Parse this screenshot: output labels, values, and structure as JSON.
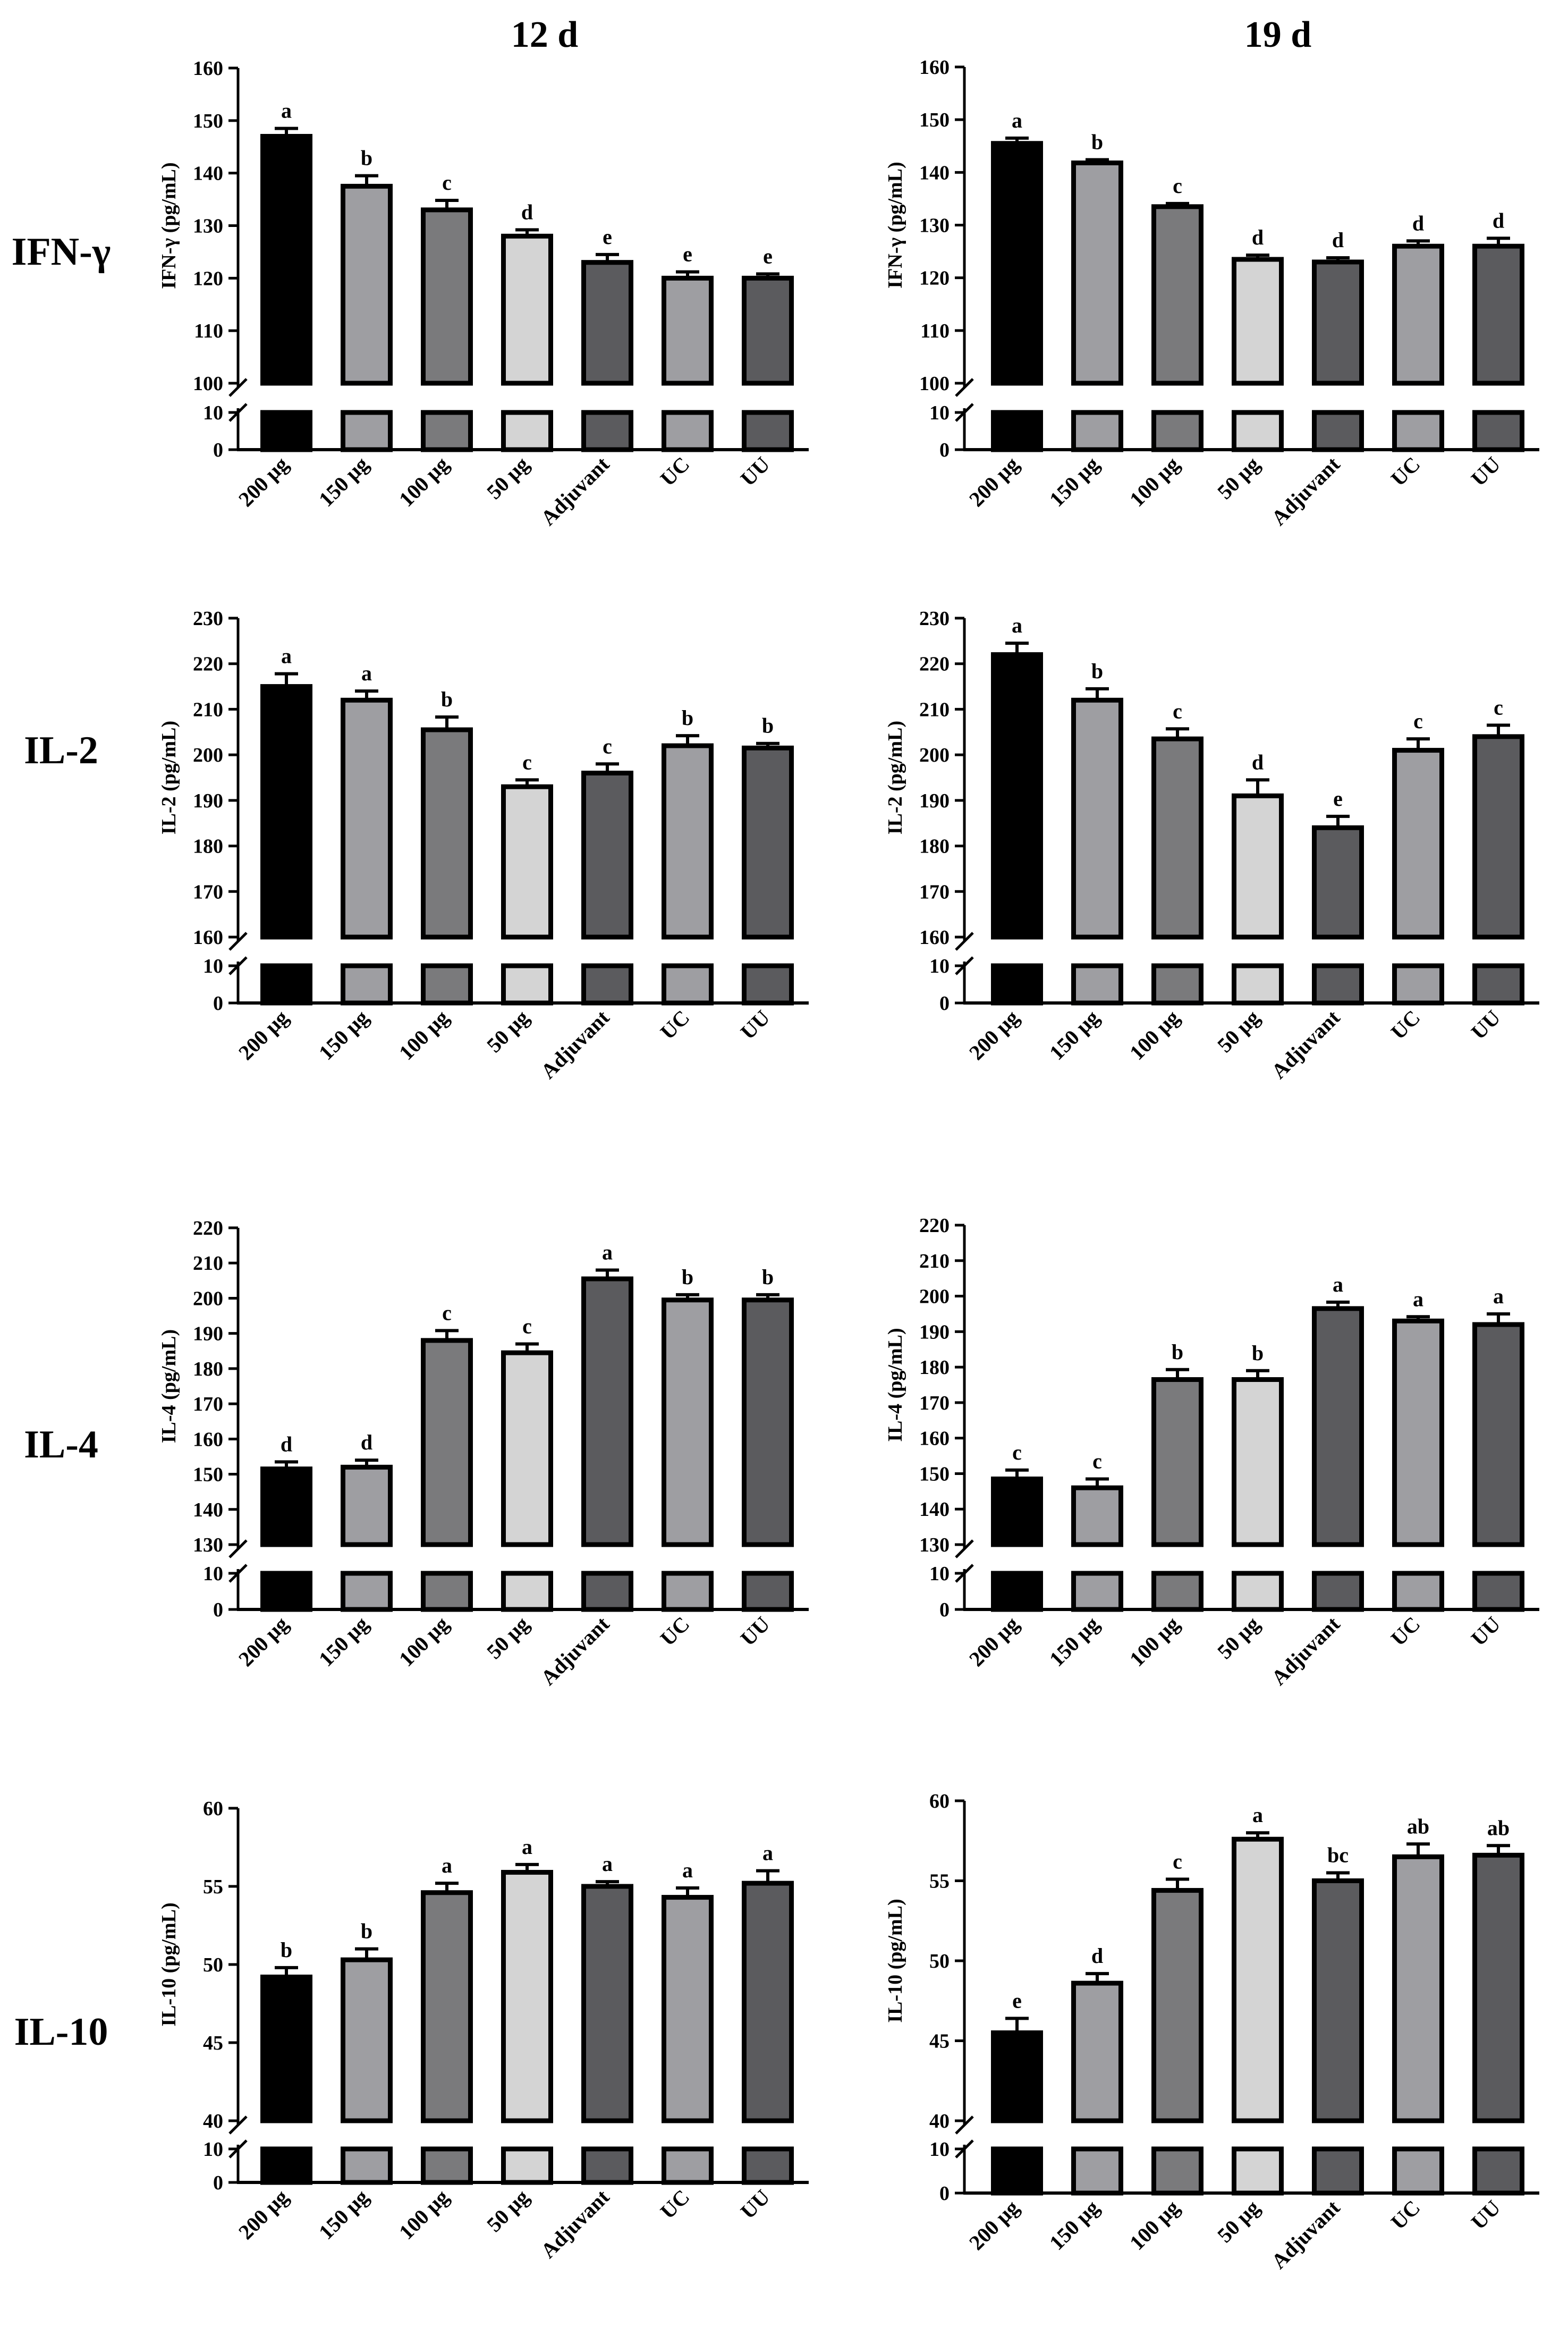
{
  "column_titles": [
    "12 d",
    "19 d"
  ],
  "row_labels": [
    "IFN-γ",
    "IL-2",
    "IL-4",
    "IL-10"
  ],
  "colors": {
    "200 μg": "#000000",
    "150 μg": "#9e9ea2",
    "100 μg": "#7a7a7c",
    "50 μg": "#d4d4d4",
    "Adjuvant": "#5b5b5e",
    "UC": "#9e9ea2",
    "UU": "#5b5b5e"
  },
  "chart_data": [
    {
      "id": "ifn-12d",
      "type": "bar",
      "title": "12 d",
      "row": 0,
      "col": 0,
      "ylabel": "IFN-γ (pg/mL)",
      "categories": [
        "200 μg",
        "150 μg",
        "100 μg",
        "50 μg",
        "Adjuvant",
        "UC",
        "UU"
      ],
      "values": [
        147,
        137.5,
        133,
        128,
        123,
        120,
        120
      ],
      "errors": [
        1.5,
        2,
        1.8,
        1.2,
        1.5,
        1.2,
        0.8
      ],
      "letters": [
        "a",
        "b",
        "c",
        "d",
        "e",
        "e",
        "e"
      ],
      "upper_range": [
        100,
        160
      ],
      "upper_ticks": [
        100,
        110,
        120,
        130,
        140,
        150,
        160
      ],
      "lower_range": [
        0,
        10
      ],
      "lower_ticks": [
        0,
        10
      ],
      "axis_break": true
    },
    {
      "id": "ifn-19d",
      "type": "bar",
      "title": "19 d",
      "row": 0,
      "col": 1,
      "ylabel": "IFN-γ (pg/mL)",
      "categories": [
        "200 μg",
        "150 μg",
        "100 μg",
        "50 μg",
        "Adjuvant",
        "UC",
        "UU"
      ],
      "values": [
        145.5,
        141.8,
        133.5,
        123.5,
        123,
        126,
        126
      ],
      "errors": [
        1,
        0.6,
        0.6,
        0.8,
        0.8,
        1,
        1.5
      ],
      "letters": [
        "a",
        "b",
        "c",
        "d",
        "d",
        "d",
        "d"
      ],
      "upper_range": [
        100,
        160
      ],
      "upper_ticks": [
        100,
        110,
        120,
        130,
        140,
        150,
        160
      ],
      "lower_range": [
        0,
        10
      ],
      "lower_ticks": [
        0,
        10
      ],
      "axis_break": true
    },
    {
      "id": "il2-12d",
      "type": "bar",
      "title": "",
      "row": 1,
      "col": 0,
      "ylabel": "IL-2 (pg/mL)",
      "categories": [
        "200 μg",
        "150 μg",
        "100 μg",
        "50 μg",
        "Adjuvant",
        "UC",
        "UU"
      ],
      "values": [
        215,
        212,
        205.5,
        193,
        196,
        202,
        201.5
      ],
      "errors": [
        2.8,
        2,
        2.8,
        1.5,
        2,
        2.2,
        1
      ],
      "letters": [
        "a",
        "a",
        "b",
        "c",
        "c",
        "b",
        "b"
      ],
      "upper_range": [
        160,
        230
      ],
      "upper_ticks": [
        160,
        170,
        180,
        190,
        200,
        210,
        220,
        230
      ],
      "lower_range": [
        0,
        10
      ],
      "lower_ticks": [
        0,
        10
      ],
      "axis_break": true
    },
    {
      "id": "il2-19d",
      "type": "bar",
      "title": "",
      "row": 1,
      "col": 1,
      "ylabel": "IL-2 (pg/mL)",
      "categories": [
        "200 μg",
        "150 μg",
        "100 μg",
        "50 μg",
        "Adjuvant",
        "UC",
        "UU"
      ],
      "values": [
        222,
        212,
        203.5,
        191,
        184,
        201,
        204
      ],
      "errors": [
        2.5,
        2.5,
        2.2,
        3.5,
        2.5,
        2.5,
        2.5
      ],
      "letters": [
        "a",
        "b",
        "c",
        "d",
        "e",
        "c",
        "c"
      ],
      "upper_range": [
        160,
        230
      ],
      "upper_ticks": [
        160,
        170,
        180,
        190,
        200,
        210,
        220,
        230
      ],
      "lower_range": [
        0,
        10
      ],
      "lower_ticks": [
        0,
        10
      ],
      "axis_break": true
    },
    {
      "id": "il4-12d",
      "type": "bar",
      "title": "",
      "row": 2,
      "col": 0,
      "ylabel": "IL-4 (pg/mL)",
      "categories": [
        "200 μg",
        "150 μg",
        "100 μg",
        "50 μg",
        "Adjuvant",
        "UC",
        "UU"
      ],
      "values": [
        151.5,
        152,
        188,
        184.5,
        205.5,
        199.5,
        199.5
      ],
      "errors": [
        2,
        2,
        2.8,
        2.5,
        2.5,
        1.5,
        1.5
      ],
      "letters": [
        "d",
        "d",
        "c",
        "c",
        "a",
        "b",
        "b"
      ],
      "upper_range": [
        130,
        220
      ],
      "upper_ticks": [
        130,
        140,
        150,
        160,
        170,
        180,
        190,
        200,
        210,
        220
      ],
      "lower_range": [
        0,
        10
      ],
      "lower_ticks": [
        0,
        10
      ],
      "axis_break": true
    },
    {
      "id": "il4-19d",
      "type": "bar",
      "title": "",
      "row": 2,
      "col": 1,
      "ylabel": "IL-4 (pg/mL)",
      "categories": [
        "200 μg",
        "150 μg",
        "100 μg",
        "50 μg",
        "Adjuvant",
        "UC",
        "UU"
      ],
      "values": [
        148.5,
        146,
        176.5,
        176.5,
        196.5,
        193,
        192
      ],
      "errors": [
        2.5,
        2.5,
        2.8,
        2.5,
        1.8,
        1.2,
        3
      ],
      "letters": [
        "c",
        "c",
        "b",
        "b",
        "a",
        "a",
        "a"
      ],
      "upper_range": [
        130,
        220
      ],
      "upper_ticks": [
        130,
        140,
        150,
        160,
        170,
        180,
        190,
        200,
        210,
        220
      ],
      "lower_range": [
        0,
        10
      ],
      "lower_ticks": [
        0,
        10
      ],
      "axis_break": true
    },
    {
      "id": "il10-12d",
      "type": "bar",
      "title": "",
      "row": 3,
      "col": 0,
      "ylabel": "IL-10 (pg/mL)",
      "categories": [
        "200 μg",
        "150 μg",
        "100 μg",
        "50 μg",
        "Adjuvant",
        "UC",
        "UU"
      ],
      "values": [
        49.2,
        50.3,
        54.6,
        55.9,
        55,
        54.3,
        55.2
      ],
      "errors": [
        0.6,
        0.7,
        0.6,
        0.5,
        0.3,
        0.6,
        0.8
      ],
      "letters": [
        "b",
        "b",
        "a",
        "a",
        "a",
        "a",
        "a"
      ],
      "upper_range": [
        40,
        60
      ],
      "upper_ticks": [
        40,
        45,
        50,
        55,
        60
      ],
      "lower_range": [
        0,
        10
      ],
      "lower_ticks": [
        0,
        10
      ],
      "axis_break": true
    },
    {
      "id": "il10-19d",
      "type": "bar",
      "title": "",
      "row": 3,
      "col": 1,
      "ylabel": "IL-10 (pg/mL)",
      "categories": [
        "200 μg",
        "150 μg",
        "100 μg",
        "50 μg",
        "Adjuvant",
        "UC",
        "UU"
      ],
      "values": [
        45.5,
        48.6,
        54.4,
        57.6,
        55,
        56.5,
        56.6
      ],
      "errors": [
        0.9,
        0.6,
        0.7,
        0.4,
        0.5,
        0.8,
        0.6
      ],
      "letters": [
        "e",
        "d",
        "c",
        "a",
        "bc",
        "ab",
        "ab"
      ],
      "upper_range": [
        40,
        60
      ],
      "upper_ticks": [
        40,
        45,
        50,
        55,
        60
      ],
      "lower_range": [
        0,
        10
      ],
      "lower_ticks": [
        0,
        10
      ],
      "axis_break": true
    }
  ]
}
